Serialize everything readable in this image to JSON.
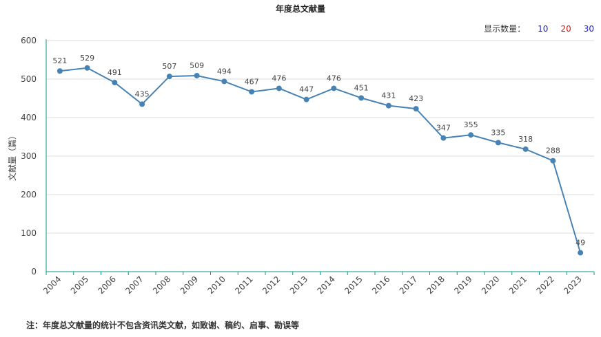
{
  "controls": {
    "count_label": "显示数量：",
    "options": [
      "10",
      "20",
      "30"
    ]
  },
  "footer": {
    "note": "注：年度总文献量的统计不包含资讯类文献，如致谢、稿约、启事、勘误等"
  },
  "chart_data": {
    "type": "line",
    "title": "年度总文献量",
    "ylabel": "文献量（篇）",
    "xlabel": "",
    "ylim": [
      0,
      600
    ],
    "yticks": [
      0,
      100,
      200,
      300,
      400,
      500,
      600
    ],
    "categories": [
      "2004",
      "2005",
      "2006",
      "2007",
      "2008",
      "2009",
      "2010",
      "2011",
      "2012",
      "2013",
      "2014",
      "2015",
      "2016",
      "2017",
      "2018",
      "2019",
      "2020",
      "2021",
      "2022",
      "2023"
    ],
    "values": [
      521,
      529,
      491,
      435,
      507,
      509,
      494,
      467,
      476,
      447,
      476,
      451,
      431,
      423,
      347,
      355,
      335,
      318,
      288,
      49
    ],
    "line_color": "#4682b4",
    "grid": true
  }
}
